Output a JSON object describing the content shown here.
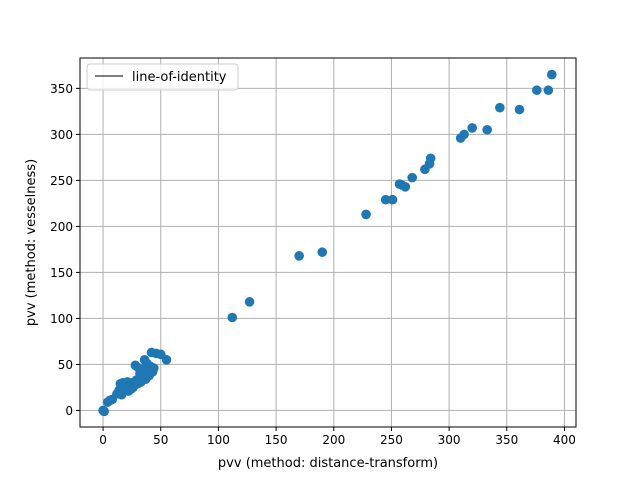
{
  "chart_data": {
    "type": "scatter",
    "title": "",
    "xlabel": "pvv (method: distance-transform)",
    "ylabel": "pvv (method: vesselness)",
    "xlim": [
      -20,
      410
    ],
    "ylim": [
      -18,
      383
    ],
    "xticks": [
      0,
      50,
      100,
      150,
      200,
      250,
      300,
      350,
      400
    ],
    "yticks": [
      0,
      50,
      100,
      150,
      200,
      250,
      300,
      350
    ],
    "grid": true,
    "legend": {
      "position": "top-left",
      "entries": [
        "line-of-identity"
      ]
    },
    "colors": {
      "points": "#1f77b4",
      "identity_line": "#000000",
      "grid": "#b0b0b0"
    },
    "series": [
      {
        "type": "line",
        "x": [
          0,
          1
        ],
        "y": [
          0,
          1
        ]
      },
      {
        "type": "scatter",
        "x": [
          0,
          1,
          4,
          6,
          8,
          12,
          14,
          15,
          16,
          17,
          18,
          19,
          20,
          21,
          22,
          23,
          24,
          25,
          26,
          27,
          28,
          29,
          30,
          31,
          32,
          33,
          34,
          35,
          36,
          37,
          38,
          39,
          40,
          41,
          42,
          43,
          44,
          46,
          50,
          55,
          112,
          127,
          170,
          190,
          228,
          245,
          251,
          257,
          259,
          262,
          268,
          279,
          283,
          284,
          310,
          313,
          320,
          333,
          344,
          361,
          376,
          386,
          389
        ],
        "y": [
          0,
          -1,
          9,
          11,
          12,
          18,
          22,
          29,
          17,
          30,
          24,
          30,
          28,
          31,
          21,
          26,
          23,
          30,
          25,
          27,
          49,
          33,
          29,
          46,
          40,
          31,
          43,
          38,
          55,
          34,
          51,
          44,
          38,
          48,
          63,
          42,
          46,
          62,
          61,
          55,
          101,
          118,
          168,
          172,
          213,
          229,
          229,
          246,
          245,
          243,
          253,
          262,
          268,
          274,
          296,
          300,
          307,
          305,
          329,
          327,
          348,
          348,
          365
        ]
      }
    ]
  }
}
